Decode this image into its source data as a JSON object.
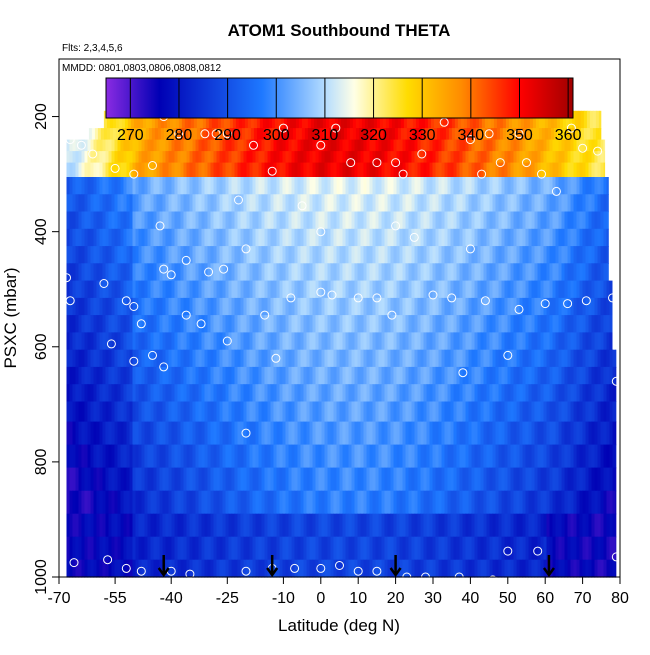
{
  "chart_data": {
    "type": "heatmap",
    "title": "ATOM1 Southbound THETA",
    "note_flights": "Flts: 2,3,4,5,6",
    "note_dates": "MMDD: 0801,0803,0806,0808,0812",
    "xlabel": "Latitude (deg N)",
    "ylabel": "PSXC (mbar)",
    "xlim": [
      -70,
      80
    ],
    "ylim": [
      1000,
      100
    ],
    "x_ticks": [
      "-70",
      "-55",
      "-40",
      "-25",
      "-10",
      "0",
      "10",
      "20",
      "30",
      "40",
      "50",
      "60",
      "70",
      "80"
    ],
    "x_tick_values": [
      -70,
      -55,
      -40,
      -25,
      -10,
      0,
      10,
      20,
      30,
      40,
      50,
      60,
      70,
      80
    ],
    "y_ticks": [
      "200",
      "400",
      "600",
      "800",
      "1000"
    ],
    "y_tick_values": [
      200,
      400,
      600,
      800,
      1000
    ],
    "colorbar": {
      "min": 265,
      "max": 361,
      "tick_labels": [
        "270",
        "280",
        "290",
        "300",
        "310",
        "320",
        "330",
        "340",
        "350",
        "360"
      ],
      "tick_values": [
        270,
        280,
        290,
        300,
        310,
        320,
        330,
        340,
        350,
        360
      ],
      "colors": [
        "#8a2be2",
        "#0000b4",
        "#1e78ff",
        "#b4dcff",
        "#ffffe6",
        "#ffdc00",
        "#ff8c00",
        "#ff0000",
        "#a00000"
      ],
      "color_stops": [
        265,
        276,
        297,
        310,
        316,
        327,
        338,
        350,
        361
      ]
    },
    "grid": false,
    "pressure_levels": [
      170,
      210,
      230,
      250,
      270,
      290,
      320,
      350,
      380,
      410,
      440,
      470,
      500,
      530,
      560,
      590,
      620,
      650,
      680,
      710,
      750,
      790,
      830,
      870,
      910,
      950,
      990
    ],
    "rows": [
      {
        "p": 170,
        "x_min": -42,
        "x_max": 33
      },
      {
        "p": 210,
        "x_min": -58,
        "x_max": 75
      },
      {
        "p": 230,
        "x_min": -62,
        "x_max": 75
      },
      {
        "p": 250,
        "x_min": -68,
        "x_max": 76
      },
      {
        "p": 270,
        "x_min": -68,
        "x_max": 76
      },
      {
        "p": 290,
        "x_min": -68,
        "x_max": 76
      },
      {
        "p": 320,
        "x_min": -68,
        "x_max": 77
      },
      {
        "p": 350,
        "x_min": -68,
        "x_max": 77
      },
      {
        "p": 380,
        "x_min": -68,
        "x_max": 77
      },
      {
        "p": 410,
        "x_min": -68,
        "x_max": 77
      },
      {
        "p": 440,
        "x_min": -68,
        "x_max": 77
      },
      {
        "p": 470,
        "x_min": -68,
        "x_max": 77
      },
      {
        "p": 500,
        "x_min": -68,
        "x_max": 78
      },
      {
        "p": 530,
        "x_min": -68,
        "x_max": 78
      },
      {
        "p": 560,
        "x_min": -68,
        "x_max": 78
      },
      {
        "p": 590,
        "x_min": -68,
        "x_max": 78
      },
      {
        "p": 620,
        "x_min": -68,
        "x_max": 79
      },
      {
        "p": 650,
        "x_min": -68,
        "x_max": 79
      },
      {
        "p": 680,
        "x_min": -68,
        "x_max": 79
      },
      {
        "p": 710,
        "x_min": -68,
        "x_max": 79
      },
      {
        "p": 750,
        "x_min": -68,
        "x_max": 79
      },
      {
        "p": 790,
        "x_min": -68,
        "x_max": 79
      },
      {
        "p": 830,
        "x_min": -68,
        "x_max": 79
      },
      {
        "p": 870,
        "x_min": -68,
        "x_max": 79
      },
      {
        "p": 910,
        "x_min": -68,
        "x_max": 79
      },
      {
        "p": 950,
        "x_min": -68,
        "x_max": 79
      },
      {
        "p": 990,
        "x_min": -68,
        "x_max": 79
      }
    ],
    "profile_markers": [
      {
        "x": -42,
        "p": 200
      },
      {
        "x": -38,
        "p": 230
      },
      {
        "x": -31,
        "p": 230
      },
      {
        "x": -28,
        "p": 230
      },
      {
        "x": -25,
        "p": 230
      },
      {
        "x": -18,
        "p": 250
      },
      {
        "x": -10,
        "p": 220
      },
      {
        "x": 0,
        "p": 250
      },
      {
        "x": 4,
        "p": 220
      },
      {
        "x": 15,
        "p": 280
      },
      {
        "x": 20,
        "p": 280
      },
      {
        "x": 30,
        "p": 180
      },
      {
        "x": 33,
        "p": 210
      },
      {
        "x": 40,
        "p": 240
      },
      {
        "x": 45,
        "p": 230
      },
      {
        "x": 53,
        "p": 230
      },
      {
        "x": 67,
        "p": 220
      },
      {
        "x": 74,
        "p": 260
      },
      {
        "x": -67,
        "p": 240
      },
      {
        "x": -64,
        "p": 250
      },
      {
        "x": -61,
        "p": 265
      },
      {
        "x": -55,
        "p": 290
      },
      {
        "x": -50,
        "p": 300
      },
      {
        "x": -45,
        "p": 285
      },
      {
        "x": -22,
        "p": 345
      },
      {
        "x": -13,
        "p": 295
      },
      {
        "x": -5,
        "p": 355
      },
      {
        "x": 8,
        "p": 280
      },
      {
        "x": 22,
        "p": 300
      },
      {
        "x": 27,
        "p": 265
      },
      {
        "x": 43,
        "p": 300
      },
      {
        "x": 48,
        "p": 280
      },
      {
        "x": 55,
        "p": 280
      },
      {
        "x": 59,
        "p": 300
      },
      {
        "x": 63,
        "p": 330
      },
      {
        "x": 70,
        "p": 255
      },
      {
        "x": -43,
        "p": 390
      },
      {
        "x": -36,
        "p": 450
      },
      {
        "x": -30,
        "p": 470
      },
      {
        "x": -20,
        "p": 430
      },
      {
        "x": 0,
        "p": 400
      },
      {
        "x": 20,
        "p": 390
      },
      {
        "x": 25,
        "p": 410
      },
      {
        "x": 40,
        "p": 430
      },
      {
        "x": -68,
        "p": 480
      },
      {
        "x": -67,
        "p": 520
      },
      {
        "x": -58,
        "p": 490
      },
      {
        "x": -52,
        "p": 520
      },
      {
        "x": -50,
        "p": 530
      },
      {
        "x": -48,
        "p": 560
      },
      {
        "x": -42,
        "p": 465
      },
      {
        "x": -40,
        "p": 475
      },
      {
        "x": -36,
        "p": 545
      },
      {
        "x": -32,
        "p": 560
      },
      {
        "x": -26,
        "p": 465
      },
      {
        "x": -15,
        "p": 545
      },
      {
        "x": -8,
        "p": 515
      },
      {
        "x": 0,
        "p": 505
      },
      {
        "x": 3,
        "p": 510
      },
      {
        "x": 10,
        "p": 515
      },
      {
        "x": 15,
        "p": 515
      },
      {
        "x": 19,
        "p": 545
      },
      {
        "x": 30,
        "p": 510
      },
      {
        "x": 35,
        "p": 515
      },
      {
        "x": 44,
        "p": 520
      },
      {
        "x": 53,
        "p": 535
      },
      {
        "x": 60,
        "p": 525
      },
      {
        "x": 66,
        "p": 525
      },
      {
        "x": 71,
        "p": 520
      },
      {
        "x": 78,
        "p": 515
      },
      {
        "x": -56,
        "p": 595
      },
      {
        "x": -50,
        "p": 625
      },
      {
        "x": -45,
        "p": 615
      },
      {
        "x": -42,
        "p": 635
      },
      {
        "x": -25,
        "p": 590
      },
      {
        "x": -12,
        "p": 620
      },
      {
        "x": 38,
        "p": 645
      },
      {
        "x": 50,
        "p": 615
      },
      {
        "x": 79,
        "p": 660
      },
      {
        "x": -20,
        "p": 750
      },
      {
        "x": 50,
        "p": 955
      },
      {
        "x": 58,
        "p": 955
      },
      {
        "x": -57,
        "p": 970
      },
      {
        "x": -52,
        "p": 985
      },
      {
        "x": -48,
        "p": 990
      },
      {
        "x": -40,
        "p": 990
      },
      {
        "x": -35,
        "p": 995
      },
      {
        "x": -20,
        "p": 990
      },
      {
        "x": -13,
        "p": 985
      },
      {
        "x": -7,
        "p": 985
      },
      {
        "x": 0,
        "p": 985
      },
      {
        "x": 5,
        "p": 980
      },
      {
        "x": 10,
        "p": 990
      },
      {
        "x": 15,
        "p": 990
      },
      {
        "x": 23,
        "p": 1000
      },
      {
        "x": 28,
        "p": 1000
      },
      {
        "x": 37,
        "p": 1000
      },
      {
        "x": 46,
        "p": 1005
      },
      {
        "x": 79,
        "p": 965
      },
      {
        "x": -66,
        "p": 975
      }
    ],
    "arrows_lat": [
      -42,
      -13,
      20,
      61
    ]
  }
}
